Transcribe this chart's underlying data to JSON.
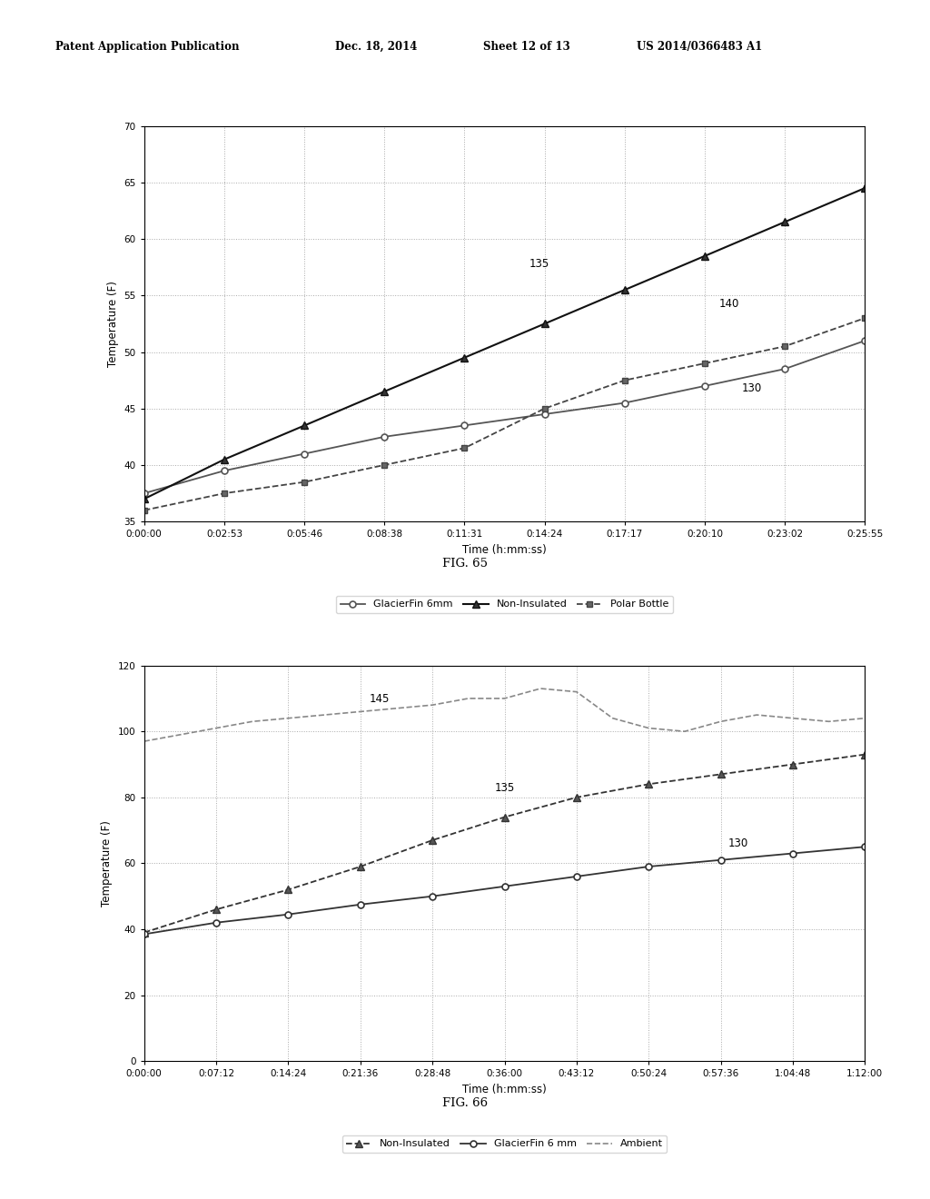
{
  "header_left": "Patent Application Publication",
  "header_mid1": "Dec. 18, 2014",
  "header_mid2": "Sheet 12 of 13",
  "header_right": "US 2014/0366483 A1",
  "fig65": {
    "title": "FIG. 65",
    "xlabel": "Time (h:mm:ss)",
    "ylabel": "Temperature (F)",
    "ylim": [
      35,
      70
    ],
    "yticks": [
      35,
      40,
      45,
      50,
      55,
      60,
      65,
      70
    ],
    "xtick_labels": [
      "0:00:00",
      "0:02:53",
      "0:05:46",
      "0:08:38",
      "0:11:31",
      "0:14:24",
      "0:17:17",
      "0:20:10",
      "0:23:02",
      "0:25:55"
    ],
    "xtick_seconds": [
      0,
      173,
      346,
      518,
      691,
      864,
      1037,
      1210,
      1382,
      1555
    ],
    "glacierfin_x": [
      0,
      173,
      346,
      518,
      691,
      864,
      1037,
      1210,
      1382,
      1555
    ],
    "glacierfin_y": [
      37.5,
      39.5,
      41.0,
      42.5,
      43.5,
      44.5,
      45.5,
      47.0,
      48.5,
      51.0
    ],
    "noninsulated_x": [
      0,
      173,
      346,
      518,
      691,
      864,
      1037,
      1210,
      1382,
      1555
    ],
    "noninsulated_y": [
      37.0,
      40.5,
      43.5,
      46.5,
      49.5,
      52.5,
      55.5,
      58.5,
      61.5,
      64.5
    ],
    "polarbottle_x": [
      0,
      173,
      346,
      518,
      691,
      864,
      1037,
      1210,
      1382,
      1555
    ],
    "polarbottle_y": [
      36.0,
      37.5,
      38.5,
      40.0,
      41.5,
      45.0,
      47.5,
      49.0,
      50.5,
      53.0
    ],
    "ann135_x": 830,
    "ann135_y": 57.5,
    "ann140_x": 1240,
    "ann140_y": 54.0,
    "ann130_x": 1290,
    "ann130_y": 46.5
  },
  "fig66": {
    "title": "FIG. 66",
    "xlabel": "Time (h:mm:ss)",
    "ylabel": "Temperature (F)",
    "ylim": [
      0,
      120
    ],
    "yticks": [
      0,
      20,
      40,
      60,
      80,
      100,
      120
    ],
    "xtick_labels": [
      "0:00:00",
      "0:07:12",
      "0:14:24",
      "0:21:36",
      "0:28:48",
      "0:36:00",
      "0:43:12",
      "0:50:24",
      "0:57:36",
      "1:04:48",
      "1:12:00"
    ],
    "xtick_seconds": [
      0,
      432,
      864,
      1296,
      1728,
      2160,
      2592,
      3024,
      3456,
      3888,
      4320
    ],
    "noninsulated_x": [
      0,
      432,
      864,
      1296,
      1728,
      2160,
      2592,
      3024,
      3456,
      3888,
      4320
    ],
    "noninsulated_y": [
      39.0,
      46.0,
      52.0,
      59.0,
      67.0,
      74.0,
      80.0,
      84.0,
      87.0,
      90.0,
      93.0
    ],
    "glacierfin_x": [
      0,
      432,
      864,
      1296,
      1728,
      2160,
      2592,
      3024,
      3456,
      3888,
      4320
    ],
    "glacierfin_y": [
      38.5,
      42.0,
      44.5,
      47.5,
      50.0,
      53.0,
      56.0,
      59.0,
      61.0,
      63.0,
      65.0
    ],
    "ambient_x": [
      0,
      216,
      432,
      648,
      864,
      1080,
      1296,
      1512,
      1728,
      1944,
      2160,
      2376,
      2592,
      2808,
      3024,
      3240,
      3456,
      3672,
      3888,
      4104,
      4320
    ],
    "ambient_y": [
      97,
      99,
      101,
      103,
      104,
      105,
      106,
      107,
      108,
      110,
      110,
      113,
      112,
      104,
      101,
      100,
      103,
      105,
      104,
      103,
      104
    ],
    "ann145_x": 1350,
    "ann145_y": 109,
    "ann135_x": 2100,
    "ann135_y": 82,
    "ann130_x": 3500,
    "ann130_y": 65
  }
}
